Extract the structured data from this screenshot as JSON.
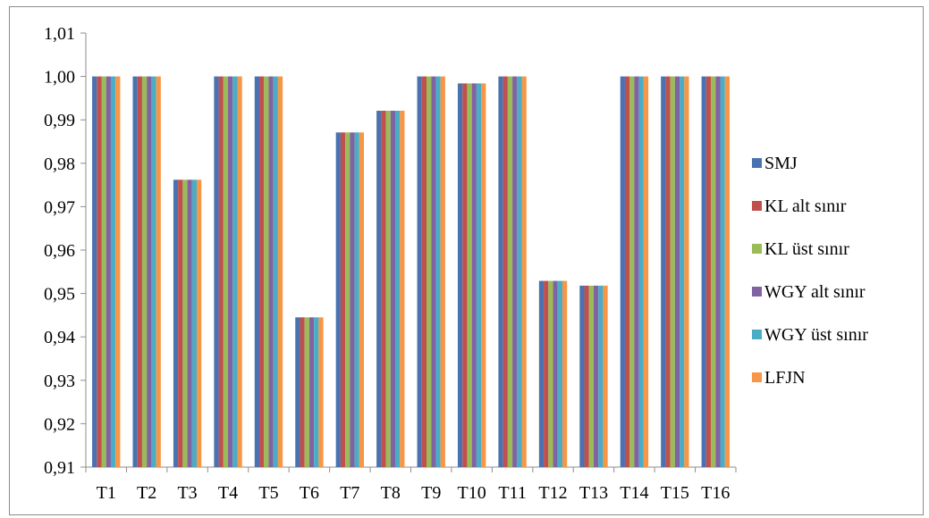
{
  "chart_data": {
    "type": "bar",
    "categories": [
      "T1",
      "T2",
      "T3",
      "T4",
      "T5",
      "T6",
      "T7",
      "T8",
      "T9",
      "T10",
      "T11",
      "T12",
      "T13",
      "T14",
      "T15",
      "T16"
    ],
    "series": [
      {
        "name": "SMJ",
        "color": "#4a72b0",
        "values": [
          1.0,
          1.0,
          0.9762,
          1.0,
          1.0,
          0.9445,
          0.9871,
          0.9921,
          1.0,
          0.9984,
          1.0,
          0.9529,
          0.9518,
          1.0,
          1.0,
          1.0
        ]
      },
      {
        "name": "KL alt sınır",
        "color": "#c0504d",
        "values": [
          1.0,
          1.0,
          0.9762,
          1.0,
          1.0,
          0.9445,
          0.9871,
          0.9921,
          1.0,
          0.9984,
          1.0,
          0.9529,
          0.9518,
          1.0,
          1.0,
          1.0
        ]
      },
      {
        "name": "KL üst sınır",
        "color": "#9bbb59",
        "values": [
          1.0,
          1.0,
          0.9762,
          1.0,
          1.0,
          0.9445,
          0.9871,
          0.9921,
          1.0,
          0.9984,
          1.0,
          0.9529,
          0.9518,
          1.0,
          1.0,
          1.0
        ]
      },
      {
        "name": "WGY alt sınır",
        "color": "#8064a2",
        "values": [
          1.0,
          1.0,
          0.9762,
          1.0,
          1.0,
          0.9445,
          0.9871,
          0.9921,
          1.0,
          0.9984,
          1.0,
          0.9529,
          0.9518,
          1.0,
          1.0,
          1.0
        ]
      },
      {
        "name": "WGY üst sınır",
        "color": "#4bacc6",
        "values": [
          1.0,
          1.0,
          0.9762,
          1.0,
          1.0,
          0.9445,
          0.9871,
          0.9921,
          1.0,
          0.9984,
          1.0,
          0.9529,
          0.9518,
          1.0,
          1.0,
          1.0
        ]
      },
      {
        "name": "LFJN",
        "color": "#f79646",
        "values": [
          1.0,
          1.0,
          0.9762,
          1.0,
          1.0,
          0.9445,
          0.9871,
          0.9921,
          1.0,
          0.9984,
          1.0,
          0.9529,
          0.9518,
          1.0,
          1.0,
          1.0
        ]
      }
    ],
    "yticks": [
      "0,91",
      "0,92",
      "0,93",
      "0,94",
      "0,95",
      "0,96",
      "0,97",
      "0,98",
      "0,99",
      "1,00",
      "1,01"
    ],
    "ylim": [
      0.91,
      1.01
    ],
    "ystep": 0.01,
    "grid": false,
    "legend_position": "right"
  }
}
